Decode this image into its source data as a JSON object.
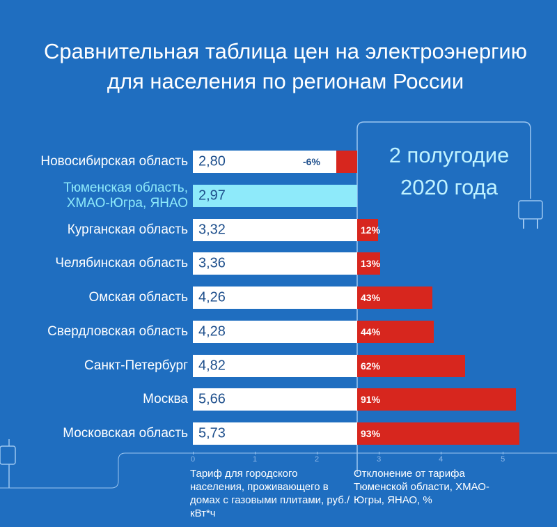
{
  "chart_data": {
    "type": "bar",
    "title": [
      "Сравнительная таблица цен на электроэнергию",
      "для населения по регионам России"
    ],
    "annotation": "2 полугодие\n2020 года",
    "categories": [
      "Новосибирская область",
      "Тюменская область,\nХМАО-Югра, ЯНАО",
      "Курганская область",
      "Челябинская область",
      "Омская область",
      "Свердловская область",
      "Санкт-Петербург",
      "Москва",
      "Московская область"
    ],
    "highlight": "Тюменская область,\nХМАО-Югра, ЯНАО",
    "highlight_color": "#8eeafa",
    "series": [
      {
        "name": "Тариф для городского населения, проживающего в домах с газовыми плитами, руб./кВт*ч",
        "color": "#ffffff",
        "values": [
          2.8,
          2.97,
          3.32,
          3.36,
          4.26,
          4.28,
          4.82,
          5.66,
          5.73
        ],
        "value_labels": [
          "2,80",
          "2,97",
          "3,32",
          "3,36",
          "4,26",
          "4,28",
          "4,82",
          "5,66",
          "5,73"
        ]
      },
      {
        "name": "Отклонение от тарифа Тюменской области, ХМАО-Югры, ЯНАО, %",
        "color": "#d7261e",
        "values": [
          -6,
          null,
          12,
          13,
          43,
          44,
          62,
          91,
          93
        ],
        "value_labels": [
          "-6%",
          null,
          "12%",
          "13%",
          "43%",
          "44%",
          "62%",
          "91%",
          "93%"
        ]
      }
    ],
    "xlim": [
      0,
      5.75
    ],
    "xticks": [
      0,
      1,
      2,
      3,
      4,
      5
    ]
  }
}
